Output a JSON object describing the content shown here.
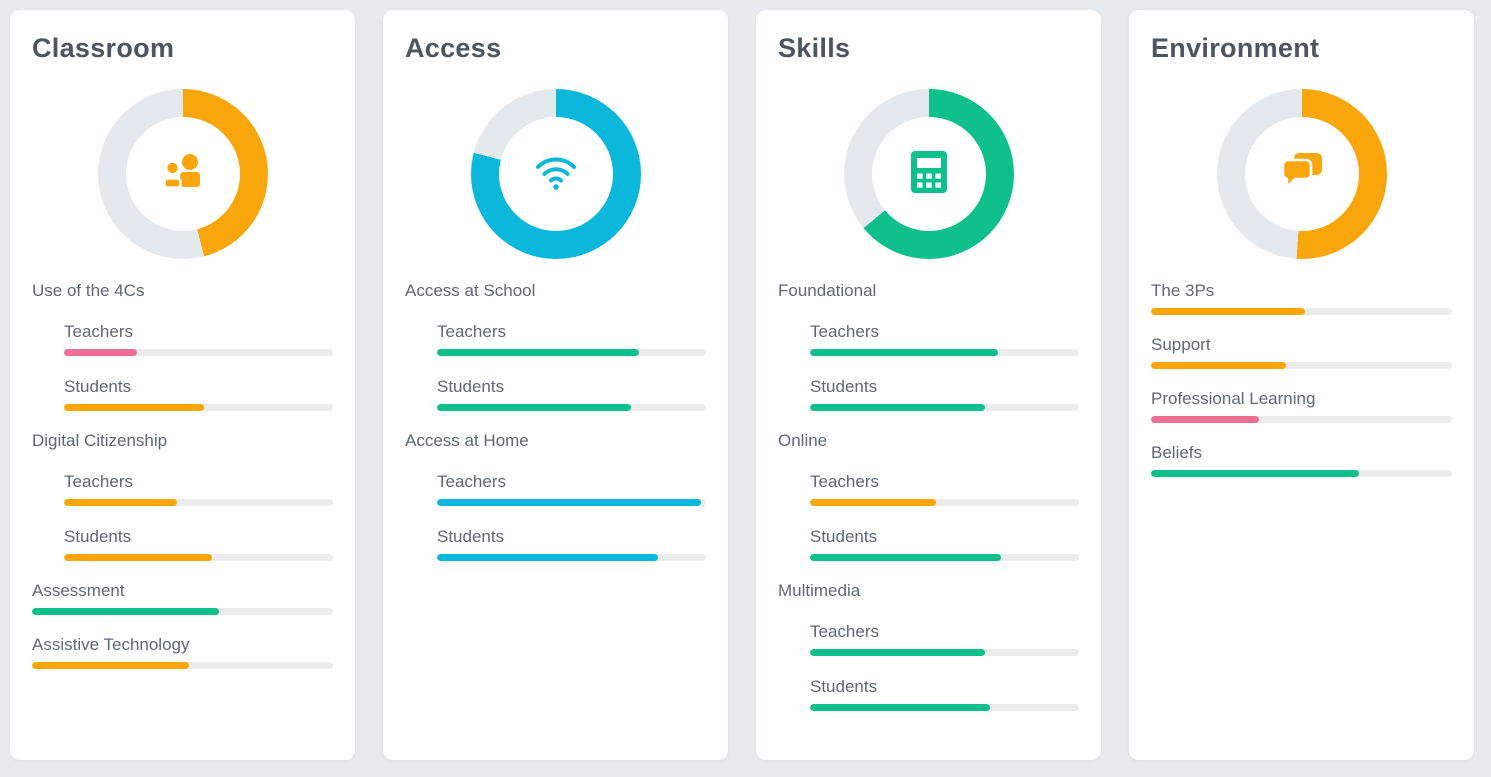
{
  "colors": {
    "orange": "#F9A60D",
    "green": "#0FC08D",
    "cyan": "#0BB7DA",
    "pink": "#EE6E96",
    "bar_track": "#ECECEC",
    "donut_track": "#E4E9ED",
    "title_text": "#4B5661",
    "label_text": "#5C6873",
    "page_background": "#E7EBEE",
    "card_background": "#FFFFFF"
  },
  "cards": [
    {
      "title": "Classroom",
      "icon": "users-icon",
      "donut": {
        "percent": 46,
        "color": "orange"
      },
      "sections": [
        {
          "label": "Use of the 4Cs",
          "subs": [
            {
              "label": "Teachers",
              "percent": 27,
              "color": "pink"
            },
            {
              "label": "Students",
              "percent": 52,
              "color": "orange"
            }
          ]
        },
        {
          "label": "Digital Citizenship",
          "subs": [
            {
              "label": "Teachers",
              "percent": 42,
              "color": "orange"
            },
            {
              "label": "Students",
              "percent": 55,
              "color": "orange"
            }
          ]
        },
        {
          "label": "Assessment",
          "bar": {
            "percent": 62,
            "color": "green"
          },
          "subs": []
        },
        {
          "label": "Assistive Technology",
          "bar": {
            "percent": 52,
            "color": "orange"
          },
          "subs": []
        }
      ]
    },
    {
      "title": "Access",
      "icon": "wifi-icon",
      "donut": {
        "percent": 79,
        "color": "cyan"
      },
      "sections": [
        {
          "label": "Access at School",
          "subs": [
            {
              "label": "Teachers",
              "percent": 75,
              "color": "green"
            },
            {
              "label": "Students",
              "percent": 72,
              "color": "green"
            }
          ]
        },
        {
          "label": "Access at Home",
          "subs": [
            {
              "label": "Teachers",
              "percent": 98,
              "color": "cyan"
            },
            {
              "label": "Students",
              "percent": 82,
              "color": "cyan"
            }
          ]
        }
      ]
    },
    {
      "title": "Skills",
      "icon": "calculator-icon",
      "donut": {
        "percent": 64,
        "color": "green"
      },
      "sections": [
        {
          "label": "Foundational",
          "subs": [
            {
              "label": "Teachers",
              "percent": 70,
              "color": "green"
            },
            {
              "label": "Students",
              "percent": 65,
              "color": "green"
            }
          ]
        },
        {
          "label": "Online",
          "subs": [
            {
              "label": "Teachers",
              "percent": 47,
              "color": "orange"
            },
            {
              "label": "Students",
              "percent": 71,
              "color": "green"
            }
          ]
        },
        {
          "label": "Multimedia",
          "subs": [
            {
              "label": "Teachers",
              "percent": 65,
              "color": "green"
            },
            {
              "label": "Students",
              "percent": 67,
              "color": "green"
            }
          ]
        }
      ]
    },
    {
      "title": "Environment",
      "icon": "chat-icon",
      "donut": {
        "percent": 51,
        "color": "orange"
      },
      "sections": [
        {
          "label": "The 3Ps",
          "bar": {
            "percent": 51,
            "color": "orange"
          },
          "subs": []
        },
        {
          "label": "Support",
          "bar": {
            "percent": 45,
            "color": "orange"
          },
          "subs": []
        },
        {
          "label": "Professional Learning",
          "bar": {
            "percent": 36,
            "color": "pink"
          },
          "subs": []
        },
        {
          "label": "Beliefs",
          "bar": {
            "percent": 69,
            "color": "green"
          },
          "subs": []
        }
      ]
    }
  ],
  "chart_data": [
    {
      "type": "pie",
      "title": "Classroom",
      "labels": [
        "filled",
        "remaining"
      ],
      "values": [
        46,
        54
      ],
      "color": "#F9A60D",
      "bars": {
        "type": "bar",
        "categories": [
          "Use of the 4Cs - Teachers",
          "Use of the 4Cs - Students",
          "Digital Citizenship - Teachers",
          "Digital Citizenship - Students",
          "Assessment",
          "Assistive Technology"
        ],
        "values": [
          27,
          52,
          42,
          55,
          62,
          52
        ],
        "colors": [
          "#EE6E96",
          "#F9A60D",
          "#F9A60D",
          "#F9A60D",
          "#0FC08D",
          "#F9A60D"
        ],
        "xlim": [
          0,
          100
        ]
      }
    },
    {
      "type": "pie",
      "title": "Access",
      "labels": [
        "filled",
        "remaining"
      ],
      "values": [
        79,
        21
      ],
      "color": "#0BB7DA",
      "bars": {
        "type": "bar",
        "categories": [
          "Access at School - Teachers",
          "Access at School - Students",
          "Access at Home - Teachers",
          "Access at Home - Students"
        ],
        "values": [
          75,
          72,
          98,
          82
        ],
        "colors": [
          "#0FC08D",
          "#0FC08D",
          "#0BB7DA",
          "#0BB7DA"
        ],
        "xlim": [
          0,
          100
        ]
      }
    },
    {
      "type": "pie",
      "title": "Skills",
      "labels": [
        "filled",
        "remaining"
      ],
      "values": [
        64,
        36
      ],
      "color": "#0FC08D",
      "bars": {
        "type": "bar",
        "categories": [
          "Foundational - Teachers",
          "Foundational - Students",
          "Online - Teachers",
          "Online - Students",
          "Multimedia - Teachers",
          "Multimedia - Students"
        ],
        "values": [
          70,
          65,
          47,
          71,
          65,
          67
        ],
        "colors": [
          "#0FC08D",
          "#0FC08D",
          "#F9A60D",
          "#0FC08D",
          "#0FC08D",
          "#0FC08D"
        ],
        "xlim": [
          0,
          100
        ]
      }
    },
    {
      "type": "pie",
      "title": "Environment",
      "labels": [
        "filled",
        "remaining"
      ],
      "values": [
        51,
        49
      ],
      "color": "#F9A60D",
      "bars": {
        "type": "bar",
        "categories": [
          "The 3Ps",
          "Support",
          "Professional Learning",
          "Beliefs"
        ],
        "values": [
          51,
          45,
          36,
          69
        ],
        "colors": [
          "#F9A60D",
          "#F9A60D",
          "#EE6E96",
          "#0FC08D"
        ],
        "xlim": [
          0,
          100
        ]
      }
    }
  ]
}
